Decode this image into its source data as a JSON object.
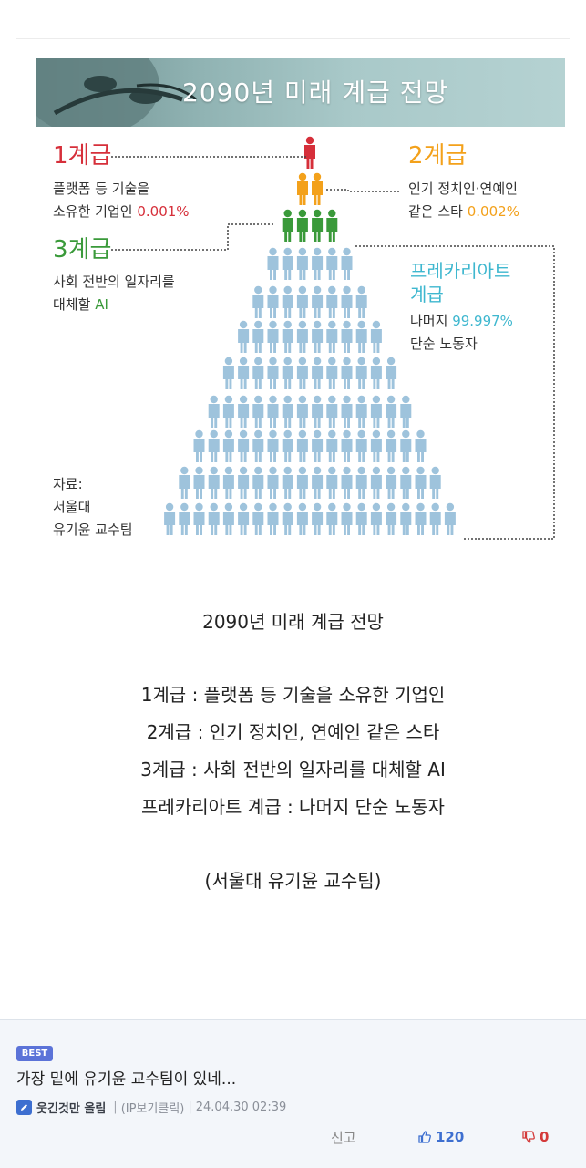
{
  "infographic": {
    "title": "2090년 미래 계급 전망",
    "tiers": [
      {
        "title": "1계급",
        "desc1": "플랫폼 등 기술을",
        "desc2": "소유한 기업인",
        "percent": "0.001%"
      },
      {
        "title": "2계급",
        "desc1": "인기 정치인·연예인",
        "desc2": "같은 스타",
        "percent": "0.002%"
      },
      {
        "title": "3계급",
        "desc1": "사회 전반의 일자리를",
        "desc2": "대체할",
        "percent": "AI"
      },
      {
        "title": "프레카리아트",
        "title2": "계급",
        "desc1": "나머지",
        "percent": "99.997%",
        "desc2": "단순 노동자"
      }
    ],
    "source": [
      "자료:",
      "서울대",
      "유기윤 교수팀"
    ],
    "colors": {
      "tier1": "#d62f3a",
      "tier2": "#f3a11b",
      "tier3": "#3a9a3a",
      "precariat": "#9ec3dc"
    }
  },
  "caption": {
    "title": "2090년 미래 계급 전망",
    "lines": [
      "1계급 : 플랫폼 등 기술을 소유한 기업인",
      "2계급 : 인기 정치인, 연예인 같은 스타",
      "3계급 : 사회 전반의 일자리를 대체할 AI",
      "프레카리아트 계급 : 나머지 단순 노동자"
    ],
    "source": "(서울대 유기윤 교수팀)"
  },
  "comment": {
    "badge": "BEST",
    "text": "가장 밑에 유기윤 교수팀이 있네...",
    "author": "웃긴것만 올림",
    "ip_label": "(IP보기클릭)",
    "timestamp": "24.04.30 02:39",
    "report_label": "신고",
    "upvotes": "120",
    "downvotes": "0",
    "pencil_icon": "pencil-icon",
    "thumb_up_icon": "thumb-up-icon",
    "thumb_down_icon": "thumb-down-icon"
  }
}
